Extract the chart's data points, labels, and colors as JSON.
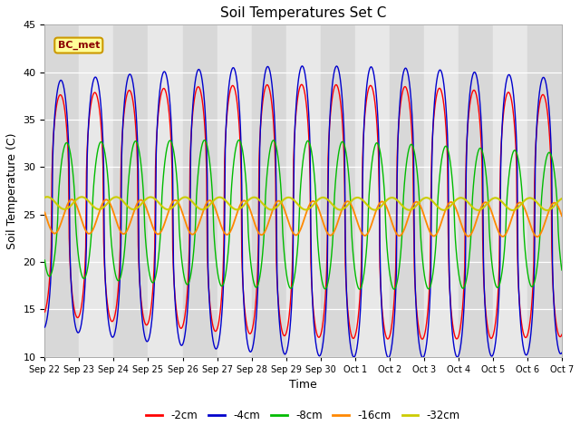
{
  "title": "Soil Temperatures Set C",
  "xlabel": "Time",
  "ylabel": "Soil Temperature (C)",
  "ylim": [
    10,
    45
  ],
  "annotation": "BC_met",
  "legend": [
    "-2cm",
    "-4cm",
    "-8cm",
    "-16cm",
    "-32cm"
  ],
  "colors": [
    "#ff0000",
    "#0000cc",
    "#00bb00",
    "#ff8800",
    "#cccc00"
  ],
  "fig_bg": "#ffffff",
  "plot_bg": "#e8e8e8",
  "xtick_labels": [
    "Sep 22",
    "Sep 23",
    "Sep 24",
    "Sep 25",
    "Sep 26",
    "Sep 27",
    "Sep 28",
    "Sep 29",
    "Sep 30",
    "Oct 1",
    "Oct 2",
    "Oct 3",
    "Oct 4",
    "Oct 5",
    "Oct 6",
    "Oct 7"
  ],
  "n_days": 15,
  "pts_per_day": 48
}
